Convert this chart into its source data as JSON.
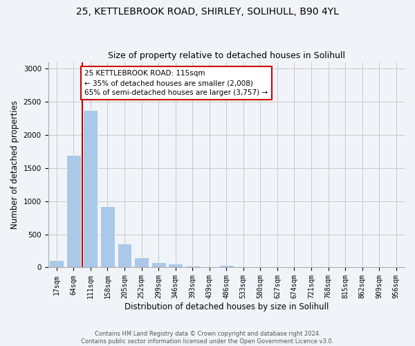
{
  "title_line1": "25, KETTLEBROOK ROAD, SHIRLEY, SOLIHULL, B90 4YL",
  "title_line2": "Size of property relative to detached houses in Solihull",
  "xlabel": "Distribution of detached houses by size in Solihull",
  "ylabel": "Number of detached properties",
  "footer_line1": "Contains HM Land Registry data © Crown copyright and database right 2024.",
  "footer_line2": "Contains public sector information licensed under the Open Government Licence v3.0.",
  "bar_labels": [
    "17sqm",
    "64sqm",
    "111sqm",
    "158sqm",
    "205sqm",
    "252sqm",
    "299sqm",
    "346sqm",
    "393sqm",
    "439sqm",
    "486sqm",
    "533sqm",
    "580sqm",
    "627sqm",
    "674sqm",
    "721sqm",
    "768sqm",
    "815sqm",
    "862sqm",
    "909sqm",
    "956sqm"
  ],
  "bar_values": [
    110,
    1700,
    2380,
    920,
    360,
    150,
    80,
    55,
    30,
    0,
    35,
    0,
    0,
    0,
    0,
    0,
    0,
    0,
    0,
    0,
    0
  ],
  "bar_color": "#aac8e8",
  "vline_color": "#cc0000",
  "vline_bar_index": 2,
  "annotation_text": "25 KETTLEBROOK ROAD: 115sqm\n← 35% of detached houses are smaller (2,008)\n65% of semi-detached houses are larger (3,757) →",
  "annotation_box_color": "#cc0000",
  "ylim": [
    0,
    3100
  ],
  "yticks": [
    0,
    500,
    1000,
    1500,
    2000,
    2500,
    3000
  ],
  "bg_color": "#f0f4f8",
  "grid_color": "#c8c8c8",
  "title_fontsize": 10,
  "subtitle_fontsize": 9,
  "axis_label_fontsize": 8.5,
  "tick_fontsize": 7,
  "annotation_fontsize": 7.5,
  "footer_fontsize": 6,
  "bar_width": 0.85
}
